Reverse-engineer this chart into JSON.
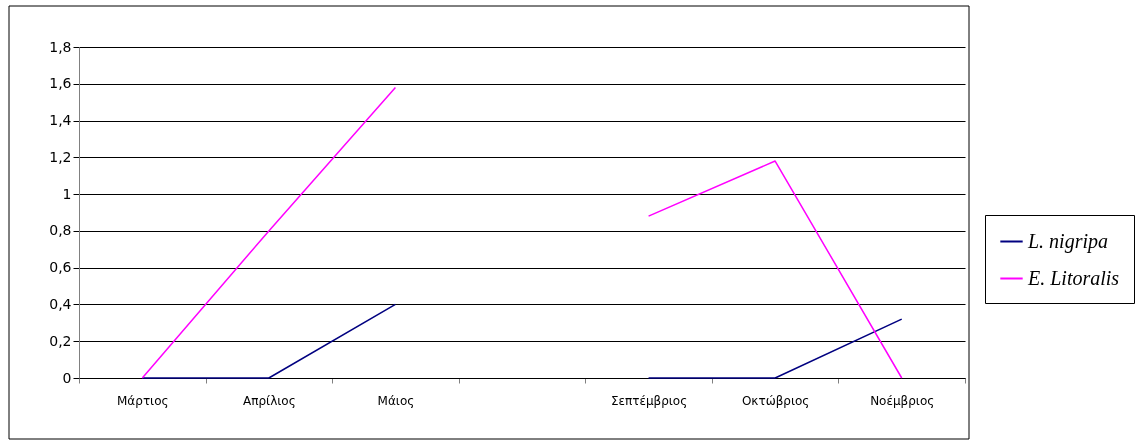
{
  "chart_data": {
    "type": "line",
    "categories": [
      "Μάρτιος",
      "Απρίλιος",
      "Μάιος",
      null,
      "Σεπτέμβριος",
      "Οκτώβριος",
      "Νοέμβριος"
    ],
    "series": [
      {
        "name": "L. nigripa",
        "color": "#000080",
        "values": [
          0,
          0,
          0.4,
          null,
          0,
          0,
          0.32
        ]
      },
      {
        "name": "E. Litoralis",
        "color": "#ff00ff",
        "values": [
          0,
          0.8,
          1.58,
          null,
          0.88,
          1.18,
          0
        ]
      }
    ],
    "ylim": [
      0,
      1.8
    ],
    "yticks": [
      0,
      {
        "value": 0.2,
        "label": "0,2"
      },
      {
        "value": 0.4,
        "label": "0,4"
      },
      {
        "value": 0.6,
        "label": "0,6"
      },
      {
        "value": 0.8,
        "label": "0,8"
      },
      1,
      {
        "value": 1.2,
        "label": "1,2"
      },
      {
        "value": 1.4,
        "label": "1,4"
      },
      {
        "value": 1.6,
        "label": "1,6"
      },
      {
        "value": 1.8,
        "label": "1,8"
      }
    ],
    "grid": "y",
    "legend": "right",
    "marker": "none",
    "line_style": "solid"
  }
}
